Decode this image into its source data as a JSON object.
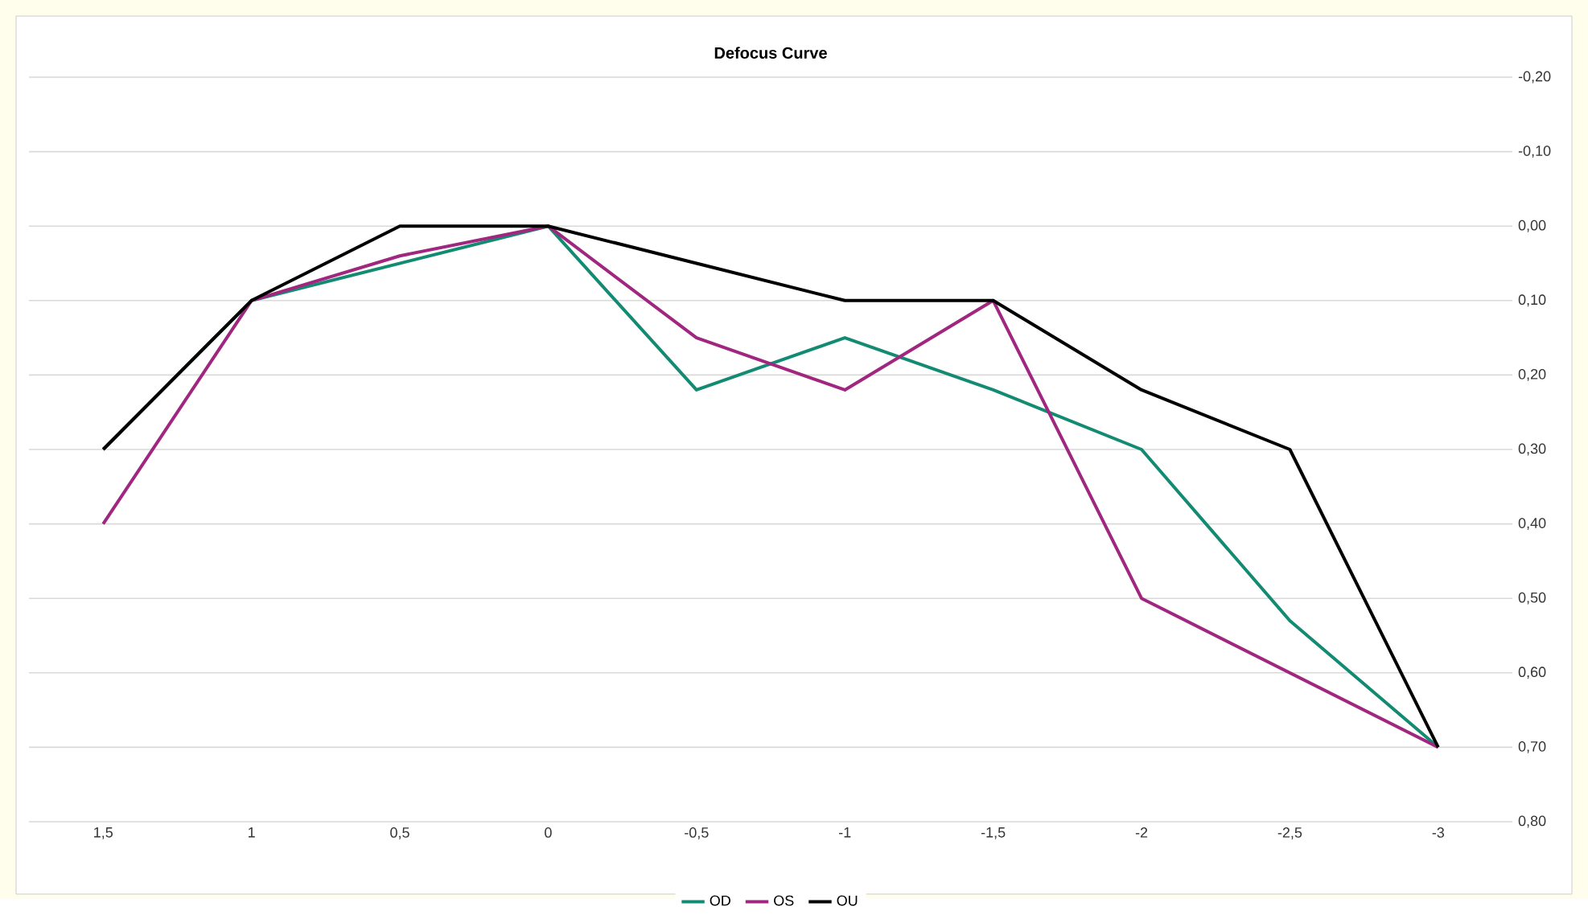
{
  "chart_data": {
    "type": "line",
    "title": "Defocus Curve",
    "categories": [
      "1,5",
      "1",
      "0,5",
      "0",
      "-0,5",
      "-1",
      "-1,5",
      "-2",
      "-2,5",
      "-3"
    ],
    "series": [
      {
        "name": "OD",
        "color": "#138a72",
        "values": [
          0.3,
          0.1,
          null,
          0,
          0.22,
          0.15,
          0.22,
          0.3,
          0.53,
          0.7
        ]
      },
      {
        "name": "OS",
        "color": "#a0267f",
        "values": [
          0.4,
          0.1,
          0.04,
          0,
          0.15,
          0.22,
          0.1,
          0.5,
          0.6,
          0.7
        ]
      },
      {
        "name": "OU",
        "color": "#000000",
        "values": [
          0.3,
          0.1,
          0,
          0,
          0.05,
          0.1,
          0.1,
          0.22,
          0.3,
          0.7
        ]
      }
    ],
    "ylim": [
      0.8,
      -0.2
    ],
    "yticks": [
      {
        "value": -0.2,
        "label": "-0,20"
      },
      {
        "value": -0.1,
        "label": "-0,10"
      },
      {
        "value": 0,
        "label": "0,00"
      },
      {
        "value": 0.1,
        "label": "0,10"
      },
      {
        "value": 0.2,
        "label": "0,20"
      },
      {
        "value": 0.3,
        "label": "0,30"
      },
      {
        "value": 0.4,
        "label": "0,40"
      },
      {
        "value": 0.5,
        "label": "0,50"
      },
      {
        "value": 0.6,
        "label": "0,60"
      },
      {
        "value": 0.7,
        "label": "0,70"
      },
      {
        "value": 0.8,
        "label": "0,80"
      }
    ],
    "grid": "y",
    "legend": "bottom",
    "marker": "none",
    "line_style": "solid"
  }
}
